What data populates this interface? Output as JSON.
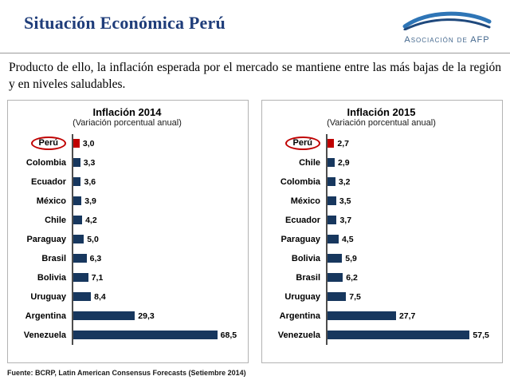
{
  "header": {
    "title": "Situación Económica Perú",
    "logo_text": "Asociación de AFP"
  },
  "body_text": "Producto de ello, la inflación esperada por el mercado se mantiene entre las más bajas de la región y en niveles saludables.",
  "footer": {
    "source": "Fuente: BCRP, Latin American Consensus Forecasts (Setiembre 2014)"
  },
  "colors": {
    "title_blue": "#1F3D7A",
    "bar_navy": "#17375E",
    "highlight_red": "#C00000",
    "axis_color": "#4d4d4d",
    "panel_border": "#b3b3b3",
    "logo_blue": "#2E75B6",
    "logo_dark_blue": "#1F497D",
    "logo_text": "#44688E"
  },
  "chart_data": [
    {
      "type": "bar",
      "orientation": "horizontal",
      "title": "Inflación 2014",
      "subtitle": "(Variación porcentual anual)",
      "categories": [
        "Perú",
        "Colombia",
        "Ecuador",
        "México",
        "Chile",
        "Paraguay",
        "Brasil",
        "Bolivia",
        "Uruguay",
        "Argentina",
        "Venezuela"
      ],
      "values": [
        3.0,
        3.3,
        3.6,
        3.9,
        4.2,
        5.0,
        6.3,
        7.1,
        8.4,
        29.3,
        68.5
      ],
      "value_labels": [
        "3,0",
        "3,3",
        "3,6",
        "3,9",
        "4,2",
        "5,0",
        "6,3",
        "7,1",
        "8,4",
        "29,3",
        "68,5"
      ],
      "highlight_category": "Perú",
      "xlim": [
        0,
        80
      ],
      "grid": false,
      "legend": false
    },
    {
      "type": "bar",
      "orientation": "horizontal",
      "title": "Inflación 2015",
      "subtitle": "(Variación porcentual anual)",
      "categories": [
        "Perú",
        "Chile",
        "Colombia",
        "México",
        "Ecuador",
        "Paraguay",
        "Bolivia",
        "Brasil",
        "Uruguay",
        "Argentina",
        "Venezuela"
      ],
      "values": [
        2.7,
        2.9,
        3.2,
        3.5,
        3.7,
        4.5,
        5.9,
        6.2,
        7.5,
        27.7,
        57.5
      ],
      "value_labels": [
        "2,7",
        "2,9",
        "3,2",
        "3,5",
        "3,7",
        "4,5",
        "5,9",
        "6,2",
        "7,5",
        "27,7",
        "57,5"
      ],
      "highlight_category": "Perú",
      "xlim": [
        0,
        68
      ],
      "grid": false,
      "legend": false
    }
  ]
}
